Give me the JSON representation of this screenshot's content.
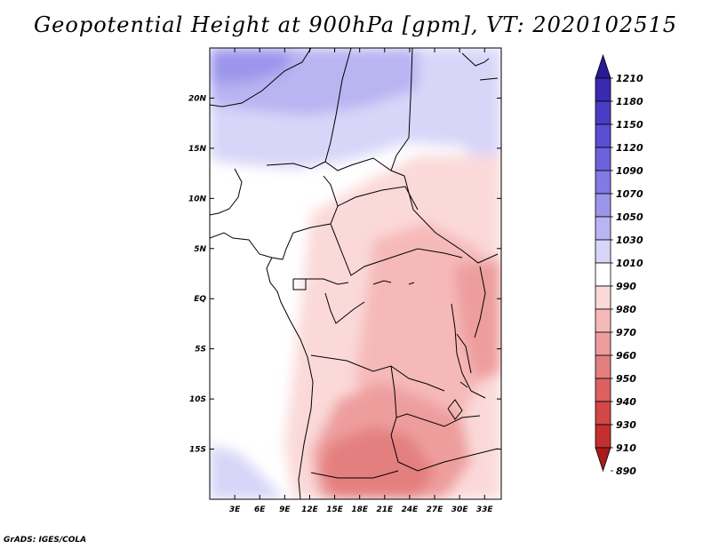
{
  "title": "Geopotential Height at 900hPa [gpm], VT: 2020102515",
  "credit": "GrADS: IGES/COLA",
  "map": {
    "lat_labels": [
      "20N",
      "15N",
      "10N",
      "5N",
      "EQ",
      "5S",
      "10S",
      "15S"
    ],
    "lon_labels": [
      "3E",
      "6E",
      "9E",
      "12E",
      "15E",
      "18E",
      "21E",
      "24E",
      "27E",
      "30E",
      "33E"
    ],
    "lat_values": [
      20,
      15,
      10,
      5,
      0,
      -5,
      -10,
      -15
    ],
    "lon_values": [
      3,
      6,
      9,
      12,
      15,
      18,
      21,
      24,
      27,
      30,
      33
    ],
    "lat_range": [
      -20,
      25
    ],
    "lon_range": [
      0,
      35
    ]
  },
  "colorbar": {
    "labels": [
      "1210",
      "1180",
      "1150",
      "1120",
      "1090",
      "1070",
      "1050",
      "1030",
      "1010",
      "990",
      "980",
      "970",
      "960",
      "950",
      "940",
      "930",
      "910",
      "890"
    ],
    "colors": [
      "#2a1a96",
      "#3a2ab0",
      "#4b3cc4",
      "#5a4ed2",
      "#6c62dc",
      "#8279e4",
      "#9c95ec",
      "#b9b4f2",
      "#d8d6f8",
      "#ffffff",
      "#fbd9d9",
      "#f6b9b9",
      "#ee9d9d",
      "#e47f7f",
      "#dc6060",
      "#d24747",
      "#c42f2f",
      "#a91b1b"
    ]
  }
}
